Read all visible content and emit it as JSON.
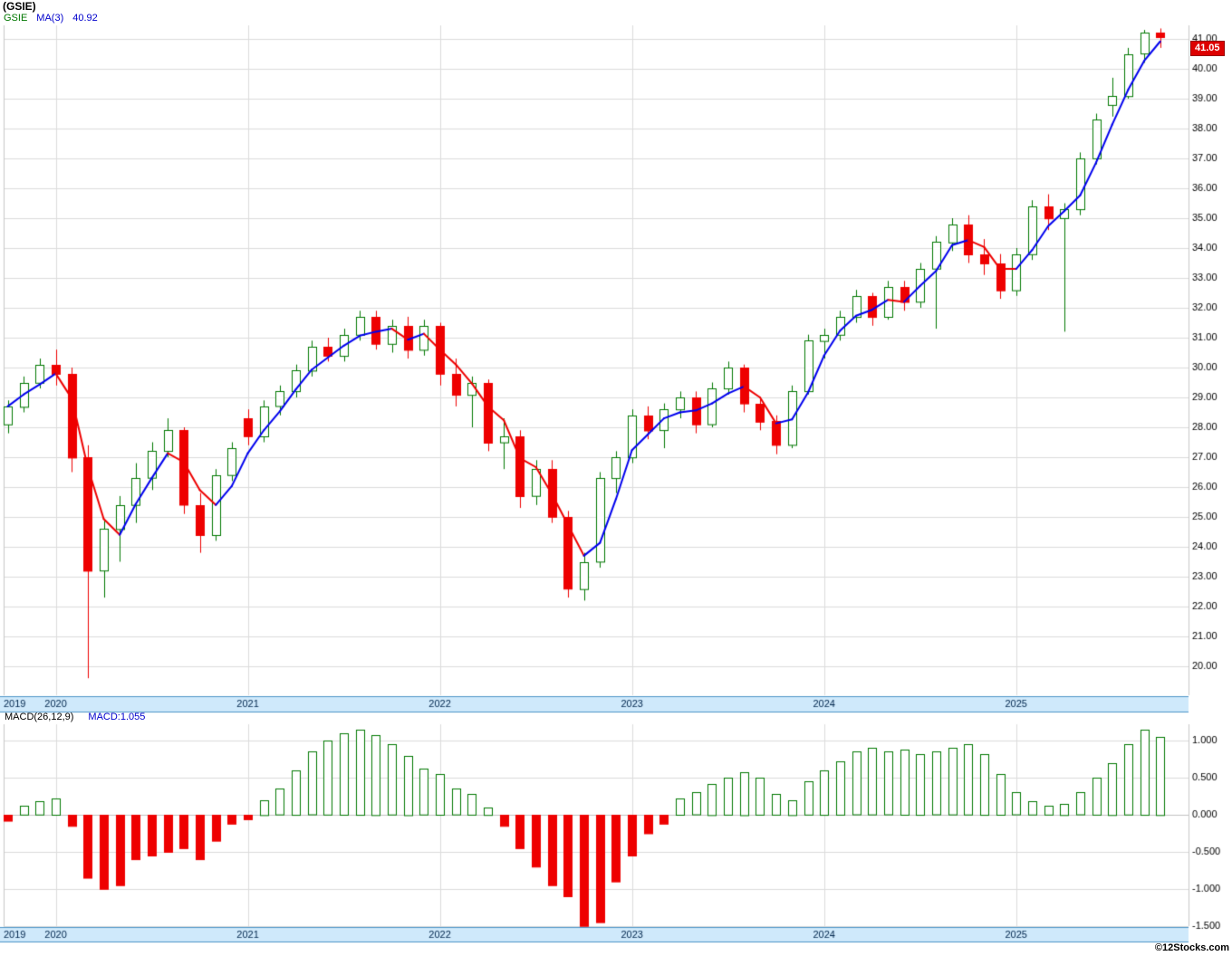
{
  "window": {
    "title": "(GSIE)",
    "copyright": "©12Stocks.com"
  },
  "legend": {
    "symbol": "GSIE",
    "ma_label": "MA(3)",
    "ma_value": "40.92"
  },
  "macd_legend": {
    "params": "MACD(26,12,9)",
    "value": "MACD:1.055"
  },
  "price_tag": "41.05",
  "colors": {
    "up": "#007700",
    "down": "#ee0000",
    "ma_up": "#0000ee",
    "ma_down": "#ee0000",
    "grid": "#dcdcdc",
    "plot_border": "#c8c8c8",
    "axis_strip_bg": "#cfe9fb",
    "axis_strip_border": "#4d94c8",
    "axis_text": "#00264d",
    "tick_text": "#000000",
    "tag_bg": "#dd0000",
    "tag_text": "#ffffff"
  },
  "chart_data": {
    "type": "candlestick",
    "symbol": "GSIE",
    "interval": "monthly",
    "source": "12Stocks.com",
    "overlay": {
      "name": "MA(3)",
      "period": 3,
      "last_value": 40.92
    },
    "price_axis": {
      "tick_min": 20,
      "tick_max": 41,
      "tick_step": 1,
      "last_price": 41.05
    },
    "years": [
      {
        "label": "2019",
        "index": 0
      },
      {
        "label": "2020",
        "index": 3
      },
      {
        "label": "2021",
        "index": 15
      },
      {
        "label": "2022",
        "index": 27
      },
      {
        "label": "2023",
        "index": 39
      },
      {
        "label": "2024",
        "index": 51
      },
      {
        "label": "2025",
        "index": 63
      }
    ],
    "months": [
      "2019-10",
      "2019-11",
      "2019-12",
      "2020-01",
      "2020-02",
      "2020-03",
      "2020-04",
      "2020-05",
      "2020-06",
      "2020-07",
      "2020-08",
      "2020-09",
      "2020-10",
      "2020-11",
      "2020-12",
      "2021-01",
      "2021-02",
      "2021-03",
      "2021-04",
      "2021-05",
      "2021-06",
      "2021-07",
      "2021-08",
      "2021-09",
      "2021-10",
      "2021-11",
      "2021-12",
      "2022-01",
      "2022-02",
      "2022-03",
      "2022-04",
      "2022-05",
      "2022-06",
      "2022-07",
      "2022-08",
      "2022-09",
      "2022-10",
      "2022-11",
      "2022-12",
      "2023-01",
      "2023-02",
      "2023-03",
      "2023-04",
      "2023-05",
      "2023-06",
      "2023-07",
      "2023-08",
      "2023-09",
      "2023-10",
      "2023-11",
      "2023-12",
      "2024-01",
      "2024-02",
      "2024-03",
      "2024-04",
      "2024-05",
      "2024-06",
      "2024-07",
      "2024-08",
      "2024-09",
      "2024-10",
      "2024-11",
      "2024-12",
      "2025-01",
      "2025-02",
      "2025-03",
      "2025-04",
      "2025-05",
      "2025-06",
      "2025-07",
      "2025-08",
      "2025-09",
      "2025-10"
    ],
    "ohlc": [
      [
        28.1,
        28.9,
        27.8,
        28.7
      ],
      [
        28.7,
        29.7,
        28.5,
        29.5
      ],
      [
        29.5,
        30.3,
        29.3,
        30.1
      ],
      [
        30.1,
        30.6,
        29.4,
        29.8
      ],
      [
        29.8,
        30.0,
        26.5,
        27.0
      ],
      [
        27.0,
        27.4,
        19.6,
        23.2
      ],
      [
        23.2,
        24.9,
        22.3,
        24.6
      ],
      [
        24.6,
        25.7,
        23.5,
        25.4
      ],
      [
        25.4,
        26.8,
        24.8,
        26.3
      ],
      [
        26.3,
        27.5,
        25.9,
        27.2
      ],
      [
        27.2,
        28.3,
        27.0,
        27.9
      ],
      [
        27.9,
        28.0,
        25.1,
        25.4
      ],
      [
        25.4,
        25.8,
        23.8,
        24.4
      ],
      [
        24.4,
        26.6,
        24.2,
        26.4
      ],
      [
        26.4,
        27.5,
        26.2,
        27.3
      ],
      [
        28.3,
        28.6,
        27.4,
        27.7
      ],
      [
        27.7,
        28.9,
        27.5,
        28.7
      ],
      [
        28.7,
        29.4,
        28.4,
        29.2
      ],
      [
        29.2,
        30.1,
        29.0,
        29.9
      ],
      [
        29.9,
        30.9,
        29.7,
        30.7
      ],
      [
        30.7,
        31.0,
        30.2,
        30.4
      ],
      [
        30.4,
        31.3,
        30.2,
        31.1
      ],
      [
        31.1,
        31.9,
        30.9,
        31.7
      ],
      [
        31.7,
        31.9,
        30.6,
        30.8
      ],
      [
        30.8,
        31.6,
        30.5,
        31.4
      ],
      [
        31.4,
        31.7,
        30.3,
        30.6
      ],
      [
        30.6,
        31.6,
        30.4,
        31.4
      ],
      [
        31.4,
        31.5,
        29.4,
        29.8
      ],
      [
        29.8,
        30.3,
        28.7,
        29.1
      ],
      [
        29.1,
        29.7,
        28.0,
        29.5
      ],
      [
        29.5,
        29.6,
        27.2,
        27.5
      ],
      [
        27.5,
        28.3,
        26.6,
        27.7
      ],
      [
        27.7,
        27.9,
        25.3,
        25.7
      ],
      [
        25.7,
        26.9,
        25.4,
        26.6
      ],
      [
        26.6,
        26.9,
        24.8,
        25.0
      ],
      [
        25.0,
        25.2,
        22.3,
        22.6
      ],
      [
        22.6,
        23.8,
        22.2,
        23.5
      ],
      [
        23.5,
        26.5,
        23.3,
        26.3
      ],
      [
        26.3,
        27.2,
        25.8,
        27.0
      ],
      [
        27.0,
        28.6,
        26.8,
        28.4
      ],
      [
        28.4,
        28.7,
        27.6,
        27.9
      ],
      [
        27.9,
        28.8,
        27.3,
        28.6
      ],
      [
        28.6,
        29.2,
        28.3,
        29.0
      ],
      [
        29.0,
        29.2,
        27.8,
        28.1
      ],
      [
        28.1,
        29.5,
        28.0,
        29.3
      ],
      [
        29.3,
        30.2,
        29.1,
        30.0
      ],
      [
        30.0,
        30.1,
        28.5,
        28.8
      ],
      [
        28.8,
        29.0,
        27.9,
        28.2
      ],
      [
        28.2,
        28.4,
        27.1,
        27.4
      ],
      [
        27.4,
        29.4,
        27.3,
        29.2
      ],
      [
        29.2,
        31.1,
        29.1,
        30.9
      ],
      [
        30.9,
        31.3,
        30.3,
        31.1
      ],
      [
        31.1,
        31.9,
        30.9,
        31.7
      ],
      [
        31.7,
        32.6,
        31.5,
        32.4
      ],
      [
        32.4,
        32.5,
        31.4,
        31.7
      ],
      [
        31.7,
        32.9,
        31.6,
        32.7
      ],
      [
        32.7,
        32.9,
        31.9,
        32.2
      ],
      [
        32.2,
        33.5,
        32.0,
        33.3
      ],
      [
        33.3,
        34.4,
        31.3,
        34.2
      ],
      [
        34.2,
        35.0,
        33.9,
        34.8
      ],
      [
        34.8,
        35.1,
        33.5,
        33.8
      ],
      [
        33.8,
        34.3,
        33.1,
        33.5
      ],
      [
        33.5,
        33.8,
        32.3,
        32.6
      ],
      [
        32.6,
        34.0,
        32.4,
        33.8
      ],
      [
        33.8,
        35.6,
        33.6,
        35.4
      ],
      [
        35.4,
        35.8,
        34.6,
        35.0
      ],
      [
        35.0,
        35.5,
        31.2,
        35.3
      ],
      [
        35.3,
        37.2,
        35.1,
        37.0
      ],
      [
        37.0,
        38.5,
        36.8,
        38.3
      ],
      [
        38.8,
        39.7,
        38.4,
        39.1
      ],
      [
        39.1,
        40.7,
        39.0,
        40.5
      ],
      [
        40.5,
        41.3,
        40.2,
        41.2
      ],
      [
        41.2,
        41.35,
        40.7,
        41.05
      ]
    ],
    "macd": {
      "type": "histogram",
      "params": {
        "fast": 12,
        "slow": 26,
        "signal": 9
      },
      "last_value": 1.055,
      "axis_ticks": [
        1.0,
        0.5,
        0.0,
        -0.5,
        -1.0,
        -1.5
      ],
      "values": [
        -0.08,
        0.12,
        0.18,
        0.22,
        -0.15,
        -0.85,
        -1.0,
        -0.95,
        -0.6,
        -0.55,
        -0.5,
        -0.45,
        -0.6,
        -0.35,
        -0.12,
        -0.06,
        0.2,
        0.35,
        0.6,
        0.85,
        1.0,
        1.1,
        1.15,
        1.08,
        0.95,
        0.8,
        0.62,
        0.55,
        0.35,
        0.28,
        0.1,
        -0.15,
        -0.45,
        -0.7,
        -0.95,
        -1.1,
        -1.5,
        -1.45,
        -0.9,
        -0.55,
        -0.25,
        -0.12,
        0.22,
        0.3,
        0.42,
        0.5,
        0.58,
        0.5,
        0.28,
        0.2,
        0.45,
        0.6,
        0.72,
        0.85,
        0.9,
        0.85,
        0.88,
        0.82,
        0.85,
        0.9,
        0.95,
        0.82,
        0.55,
        0.3,
        0.18,
        0.12,
        0.15,
        0.3,
        0.5,
        0.7,
        0.95,
        1.15,
        1.055
      ]
    }
  }
}
